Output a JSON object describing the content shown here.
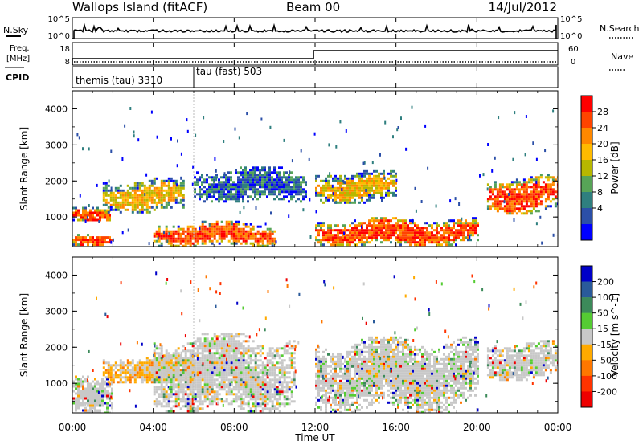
{
  "header": {
    "site": "Wallops Island (fitACF)",
    "beam": "Beam 00",
    "date": "14/Jul/2012"
  },
  "noise_panel": {
    "left_label": "N.Sky",
    "right_label": "N.Search",
    "left_ticks": [
      "10^5",
      "10^0"
    ],
    "right_ticks": [
      "10^5",
      "10^0"
    ]
  },
  "freq_panel": {
    "left_label_1": "Freq.",
    "left_label_2": "[MHz]",
    "right_label": "Nave",
    "left_ticks": [
      "18",
      "8"
    ],
    "right_ticks": [
      "60",
      "0"
    ]
  },
  "cpid_panel": {
    "label": "CPID",
    "modes": [
      {
        "text": "themis (tau) 3310",
        "start_hour": 0
      },
      {
        "text": "tau (fast) 503",
        "start_hour": 6
      }
    ]
  },
  "x_axis": {
    "title": "Time UT",
    "ticks": [
      "00:00",
      "04:00",
      "08:00",
      "12:00",
      "16:00",
      "20:00",
      "00:00"
    ],
    "range_hours": [
      0,
      24
    ]
  },
  "power_colorbar": {
    "title": "Power [dB]",
    "ticks": [
      "28",
      "24",
      "20",
      "16",
      "12",
      "8",
      "4"
    ],
    "colors": [
      "#ff0000",
      "#ff4400",
      "#ff8800",
      "#ffbb00",
      "#b7b700",
      "#57a457",
      "#2f7f7f",
      "#2b4fa8",
      "#0000ff"
    ]
  },
  "velocity_colorbar": {
    "title": "Velocity [m s^-1]",
    "ticks": [
      "200",
      "100",
      "50",
      "15",
      "-15",
      "-50",
      "-100",
      "-200"
    ],
    "colors": [
      "#0000c8",
      "#2a5a9a",
      "#3c8a5a",
      "#55cc33",
      "#c8c8c8",
      "#ffaa00",
      "#ff7700",
      "#ff3300",
      "#ee0000"
    ]
  },
  "chart_data": [
    {
      "type": "heatmap",
      "title": "",
      "xlabel": "",
      "ylabel": "Slant Range [km]",
      "xlim": [
        0,
        24
      ],
      "ylim": [
        180,
        4500
      ],
      "yticks": [
        "4000",
        "3000",
        "2000",
        "1000"
      ],
      "colorbar": "Power [dB]",
      "features": [
        {
          "t0": 0.0,
          "t1": 1.8,
          "r0": 900,
          "r1": 1350,
          "level": "high"
        },
        {
          "t0": 0.0,
          "t1": 2.0,
          "r0": 200,
          "r1": 600,
          "level": "high"
        },
        {
          "t0": 1.5,
          "t1": 5.5,
          "r0": 1100,
          "r1": 2100,
          "level": "medium"
        },
        {
          "t0": 4.0,
          "t1": 10.0,
          "r0": 200,
          "r1": 900,
          "level": "high"
        },
        {
          "t0": 6.0,
          "t1": 11.5,
          "r0": 1400,
          "r1": 2400,
          "level": "low"
        },
        {
          "t0": 12.0,
          "t1": 16.0,
          "r0": 1400,
          "r1": 2300,
          "level": "medium"
        },
        {
          "t0": 12.0,
          "t1": 20.0,
          "r0": 200,
          "r1": 1000,
          "level": "high"
        },
        {
          "t0": 20.5,
          "t1": 24.0,
          "r0": 1100,
          "r1": 2200,
          "level": "high"
        }
      ]
    },
    {
      "type": "heatmap",
      "title": "",
      "xlabel": "Time UT",
      "ylabel": "Slant Range [km]",
      "xlim": [
        0,
        24
      ],
      "ylim": [
        180,
        4500
      ],
      "yticks": [
        "4000",
        "3000",
        "2000",
        "1000"
      ],
      "colorbar": "Velocity [m s^-1]",
      "features": [
        {
          "t0": 0.0,
          "t1": 2.0,
          "r0": 200,
          "r1": 1350,
          "level": "-15 to 15"
        },
        {
          "t0": 1.5,
          "t1": 6.0,
          "r0": 1000,
          "r1": 1800,
          "level": "-50 to -15"
        },
        {
          "t0": 4.0,
          "t1": 11.0,
          "r0": 200,
          "r1": 2400,
          "level": "-15 to 15"
        },
        {
          "t0": 12.0,
          "t1": 20.0,
          "r0": 200,
          "r1": 2300,
          "level": "-15 to 15"
        },
        {
          "t0": 20.5,
          "t1": 24.0,
          "r0": 1100,
          "r1": 2200,
          "level": "-15 to 15"
        }
      ]
    }
  ]
}
